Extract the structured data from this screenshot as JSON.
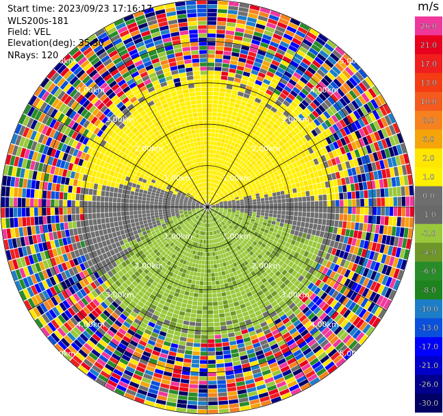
{
  "header": {
    "start_time": "Start time: 2023/09/23 17:16:17",
    "instrument": "WLS200s-181",
    "field": "Field: VEL",
    "elevation": "Elevation(deg): 35.30",
    "nrays": "NRays: 120"
  },
  "colorbar": {
    "unit": "m/s",
    "ticks": [
      "26.0",
      "21.0",
      "17.0",
      "13.0",
      "10.0",
      "8.0",
      "6.0",
      "2.0",
      "1.0",
      "0.0",
      "-1.0",
      "-2.0",
      "-4.0",
      "-6.0",
      "-8.0",
      "-10.0",
      "-13.0",
      "-17.0",
      "-21.0",
      "-26.0",
      "-30.0"
    ],
    "colors": [
      "#f0389c",
      "#e8001e",
      "#f01e1e",
      "#f53c14",
      "#f55a1e",
      "#f5821e",
      "#f5a50a",
      "#ffe600",
      "#fff000",
      "#6e6e6e",
      "#696969",
      "#9ac83c",
      "#6e9628",
      "#288c28",
      "#1e821e",
      "#1c7ec8",
      "#0a50dc",
      "#0000ff",
      "#0000c8",
      "#00008c",
      "#000064"
    ]
  },
  "chart_data": {
    "type": "heatmap",
    "projection": "polar PPI",
    "field": "VEL",
    "units": "m/s",
    "value_range": [
      -30.0,
      26.0
    ],
    "range_rings_labels": [
      "1.00km",
      "2.00km",
      "3.00km",
      "4.00km",
      "5.00km"
    ],
    "nrays": 120,
    "azimuth_spokes_deg": [
      0,
      30,
      60,
      90,
      120,
      150,
      180,
      210,
      240,
      270,
      300,
      330
    ],
    "pattern": {
      "north_half_velocity": 2.0,
      "south_half_velocity": -2.0,
      "near_zero_band": 0.0,
      "outer_noise_range_km": [
        3.2,
        5.0
      ]
    }
  }
}
